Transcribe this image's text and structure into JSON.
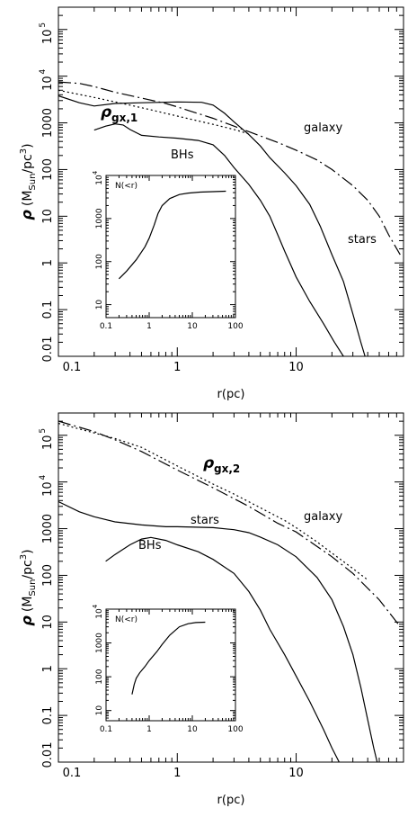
{
  "chart_data": [
    {
      "type": "line",
      "panel": "top",
      "xscale": "log",
      "yscale": "log",
      "xlim": [
        0.1,
        80
      ],
      "ylim": [
        0.01,
        300000
      ],
      "xlabel": "r(pc)",
      "ylabel": "ρ (M_Sun/pc^3)",
      "ylabel_parts": {
        "rho": "ρ",
        "open": "(M",
        "sub": "Sun",
        "slash": "/pc",
        "sup": "3",
        "close": ")"
      },
      "x_ticks": [
        0.1,
        1,
        10
      ],
      "x_tick_labels": [
        "0.1",
        "1",
        "10"
      ],
      "y_ticks": [
        0.01,
        0.1,
        1,
        10,
        100,
        1000,
        10000,
        100000
      ],
      "y_tick_labels": {
        "plain": [
          "0.01",
          "0.1",
          "1",
          "10",
          "100",
          "1000"
        ],
        "pow": [
          {
            "base": "10",
            "exp": "4"
          },
          {
            "base": "10",
            "exp": "5"
          }
        ]
      },
      "annotations": {
        "rho": "ρ",
        "rho_sub": "gx,1",
        "galaxy": "galaxy",
        "bhs": "BHs",
        "stars": "stars"
      },
      "series": [
        {
          "key": "stars",
          "style": "solid",
          "points": [
            [
              0.1,
              3800
            ],
            [
              0.15,
              2700
            ],
            [
              0.2,
              2300
            ],
            [
              0.3,
              2600
            ],
            [
              0.5,
              2700
            ],
            [
              1,
              2800
            ],
            [
              1.6,
              2750
            ],
            [
              2,
              2400
            ],
            [
              2.5,
              1600
            ],
            [
              3,
              1050
            ],
            [
              4,
              560
            ],
            [
              5,
              320
            ],
            [
              6,
              180
            ],
            [
              8,
              85
            ],
            [
              10,
              45
            ],
            [
              13,
              18
            ],
            [
              16,
              6
            ],
            [
              20,
              1.5
            ],
            [
              25,
              0.4
            ],
            [
              30,
              0.08
            ],
            [
              35,
              0.02
            ],
            [
              38,
              0.01
            ]
          ]
        },
        {
          "key": "bhs",
          "style": "solid",
          "points": [
            [
              0.2,
              700
            ],
            [
              0.25,
              850
            ],
            [
              0.3,
              950
            ],
            [
              0.35,
              900
            ],
            [
              0.4,
              720
            ],
            [
              0.5,
              540
            ],
            [
              0.7,
              500
            ],
            [
              1,
              470
            ],
            [
              1.5,
              420
            ],
            [
              2,
              340
            ],
            [
              2.5,
              200
            ],
            [
              3,
              110
            ],
            [
              4,
              48
            ],
            [
              5,
              22
            ],
            [
              6,
              10
            ],
            [
              7,
              4
            ],
            [
              8,
              1.8
            ],
            [
              10,
              0.5
            ],
            [
              13,
              0.15
            ],
            [
              17,
              0.05
            ],
            [
              21,
              0.02
            ],
            [
              25,
              0.01
            ]
          ]
        },
        {
          "key": "galaxy",
          "style": "dashdot",
          "points": [
            [
              0.1,
              7500
            ],
            [
              0.15,
              7000
            ],
            [
              0.2,
              6000
            ],
            [
              0.3,
              4500
            ],
            [
              0.5,
              3400
            ],
            [
              0.8,
              2600
            ],
            [
              1,
              2200
            ],
            [
              2,
              1250
            ],
            [
              4,
              650
            ],
            [
              7,
              380
            ],
            [
              10,
              260
            ],
            [
              15,
              160
            ],
            [
              20,
              100
            ],
            [
              30,
              45
            ],
            [
              40,
              22
            ],
            [
              50,
              10
            ],
            [
              60,
              4
            ],
            [
              75,
              1.5
            ]
          ]
        },
        {
          "key": "rho_gx",
          "style": "dotted",
          "points": [
            [
              0.1,
              5000
            ],
            [
              0.2,
              3500
            ],
            [
              0.4,
              2400
            ],
            [
              0.6,
              1900
            ],
            [
              1,
              1400
            ],
            [
              2,
              930
            ],
            [
              3,
              720
            ],
            [
              4,
              580
            ]
          ]
        }
      ],
      "inset": {
        "label": "N(<r)",
        "xlim": [
          0.1,
          100
        ],
        "ylim": [
          5,
          10000
        ],
        "x_tick_labels": [
          "0.1",
          "1",
          "10",
          "100"
        ],
        "y_tick_labels": {
          "plain": [
            "10",
            "100",
            "1000"
          ],
          "pow": {
            "base": "10",
            "exp": "4"
          }
        },
        "points": [
          [
            0.2,
            40
          ],
          [
            0.3,
            60
          ],
          [
            0.5,
            110
          ],
          [
            0.8,
            220
          ],
          [
            1,
            350
          ],
          [
            1.3,
            700
          ],
          [
            1.6,
            1300
          ],
          [
            2,
            2000
          ],
          [
            3,
            2900
          ],
          [
            5,
            3600
          ],
          [
            8,
            3900
          ],
          [
            15,
            4100
          ],
          [
            30,
            4200
          ],
          [
            60,
            4300
          ]
        ]
      }
    },
    {
      "type": "line",
      "panel": "bottom",
      "xscale": "log",
      "yscale": "log",
      "xlim": [
        0.1,
        80
      ],
      "ylim": [
        0.01,
        300000
      ],
      "xlabel": "r(pc)",
      "ylabel": "ρ (M_Sun/pc^3)",
      "ylabel_parts": {
        "rho": "ρ",
        "open": "(M",
        "sub": "Sun",
        "slash": "/pc",
        "sup": "3",
        "close": ")"
      },
      "x_ticks": [
        0.1,
        1,
        10
      ],
      "x_tick_labels": [
        "0.1",
        "1",
        "10"
      ],
      "y_ticks": [
        0.01,
        0.1,
        1,
        10,
        100,
        1000,
        10000,
        100000
      ],
      "y_tick_labels": {
        "plain": [
          "0.01",
          "0.1",
          "1",
          "10",
          "100",
          "1000"
        ],
        "pow": [
          {
            "base": "10",
            "exp": "4"
          },
          {
            "base": "10",
            "exp": "5"
          }
        ]
      },
      "annotations": {
        "rho": "ρ",
        "rho_sub": "gx,2",
        "galaxy": "galaxy",
        "bhs": "BHs",
        "stars": "stars"
      },
      "series": [
        {
          "key": "stars",
          "style": "solid",
          "points": [
            [
              0.1,
              3800
            ],
            [
              0.15,
              2300
            ],
            [
              0.2,
              1800
            ],
            [
              0.3,
              1400
            ],
            [
              0.5,
              1200
            ],
            [
              0.8,
              1100
            ],
            [
              1,
              1100
            ],
            [
              2,
              1050
            ],
            [
              3,
              950
            ],
            [
              4,
              820
            ],
            [
              5,
              660
            ],
            [
              7,
              450
            ],
            [
              10,
              250
            ],
            [
              15,
              90
            ],
            [
              20,
              30
            ],
            [
              25,
              8
            ],
            [
              30,
              2
            ],
            [
              35,
              0.4
            ],
            [
              40,
              0.08
            ],
            [
              45,
              0.02
            ],
            [
              48,
              0.01
            ]
          ]
        },
        {
          "key": "bhs",
          "style": "solid",
          "points": [
            [
              0.25,
              200
            ],
            [
              0.3,
              280
            ],
            [
              0.4,
              450
            ],
            [
              0.5,
              600
            ],
            [
              0.6,
              650
            ],
            [
              0.8,
              560
            ],
            [
              1,
              450
            ],
            [
              1.5,
              320
            ],
            [
              2,
              220
            ],
            [
              3,
              110
            ],
            [
              4,
              45
            ],
            [
              5,
              18
            ],
            [
              6,
              7
            ],
            [
              8,
              2
            ],
            [
              10,
              0.7
            ],
            [
              13,
              0.2
            ],
            [
              17,
              0.05
            ],
            [
              20,
              0.02
            ],
            [
              23,
              0.01
            ]
          ]
        },
        {
          "key": "galaxy",
          "style": "dashdot",
          "points": [
            [
              0.1,
              200000
            ],
            [
              0.2,
              120000
            ],
            [
              0.3,
              80000
            ],
            [
              0.5,
              45000
            ],
            [
              1,
              18000
            ],
            [
              2,
              7500
            ],
            [
              4,
              3000
            ],
            [
              7,
              1300
            ],
            [
              10,
              850
            ],
            [
              20,
              250
            ],
            [
              30,
              110
            ],
            [
              50,
              30
            ],
            [
              70,
              10
            ],
            [
              75,
              8
            ]
          ]
        },
        {
          "key": "rho_gx",
          "style": "dotted",
          "points": [
            [
              0.1,
              180000
            ],
            [
              0.3,
              85000
            ],
            [
              0.5,
              55000
            ],
            [
              1,
              22000
            ],
            [
              2,
              9000
            ],
            [
              3,
              5500
            ],
            [
              5,
              2800
            ],
            [
              8,
              1500
            ],
            [
              10,
              1050
            ],
            [
              15,
              520
            ],
            [
              20,
              300
            ],
            [
              30,
              140
            ],
            [
              40,
              80
            ]
          ]
        }
      ],
      "inset": {
        "label": "N(<r)",
        "xlim": [
          0.1,
          100
        ],
        "ylim": [
          5,
          10000
        ],
        "x_tick_labels": [
          "0.1",
          "1",
          "10",
          "100"
        ],
        "y_tick_labels": {
          "plain": [
            "10",
            "100",
            "1000"
          ],
          "pow": {
            "base": "10",
            "exp": "4"
          }
        },
        "points": [
          [
            0.4,
            30
          ],
          [
            0.45,
            60
          ],
          [
            0.5,
            90
          ],
          [
            0.6,
            130
          ],
          [
            0.8,
            200
          ],
          [
            1,
            300
          ],
          [
            1.5,
            550
          ],
          [
            2,
            900
          ],
          [
            3,
            1700
          ],
          [
            5,
            3000
          ],
          [
            8,
            3700
          ],
          [
            12,
            4000
          ],
          [
            20,
            4100
          ]
        ]
      }
    }
  ]
}
